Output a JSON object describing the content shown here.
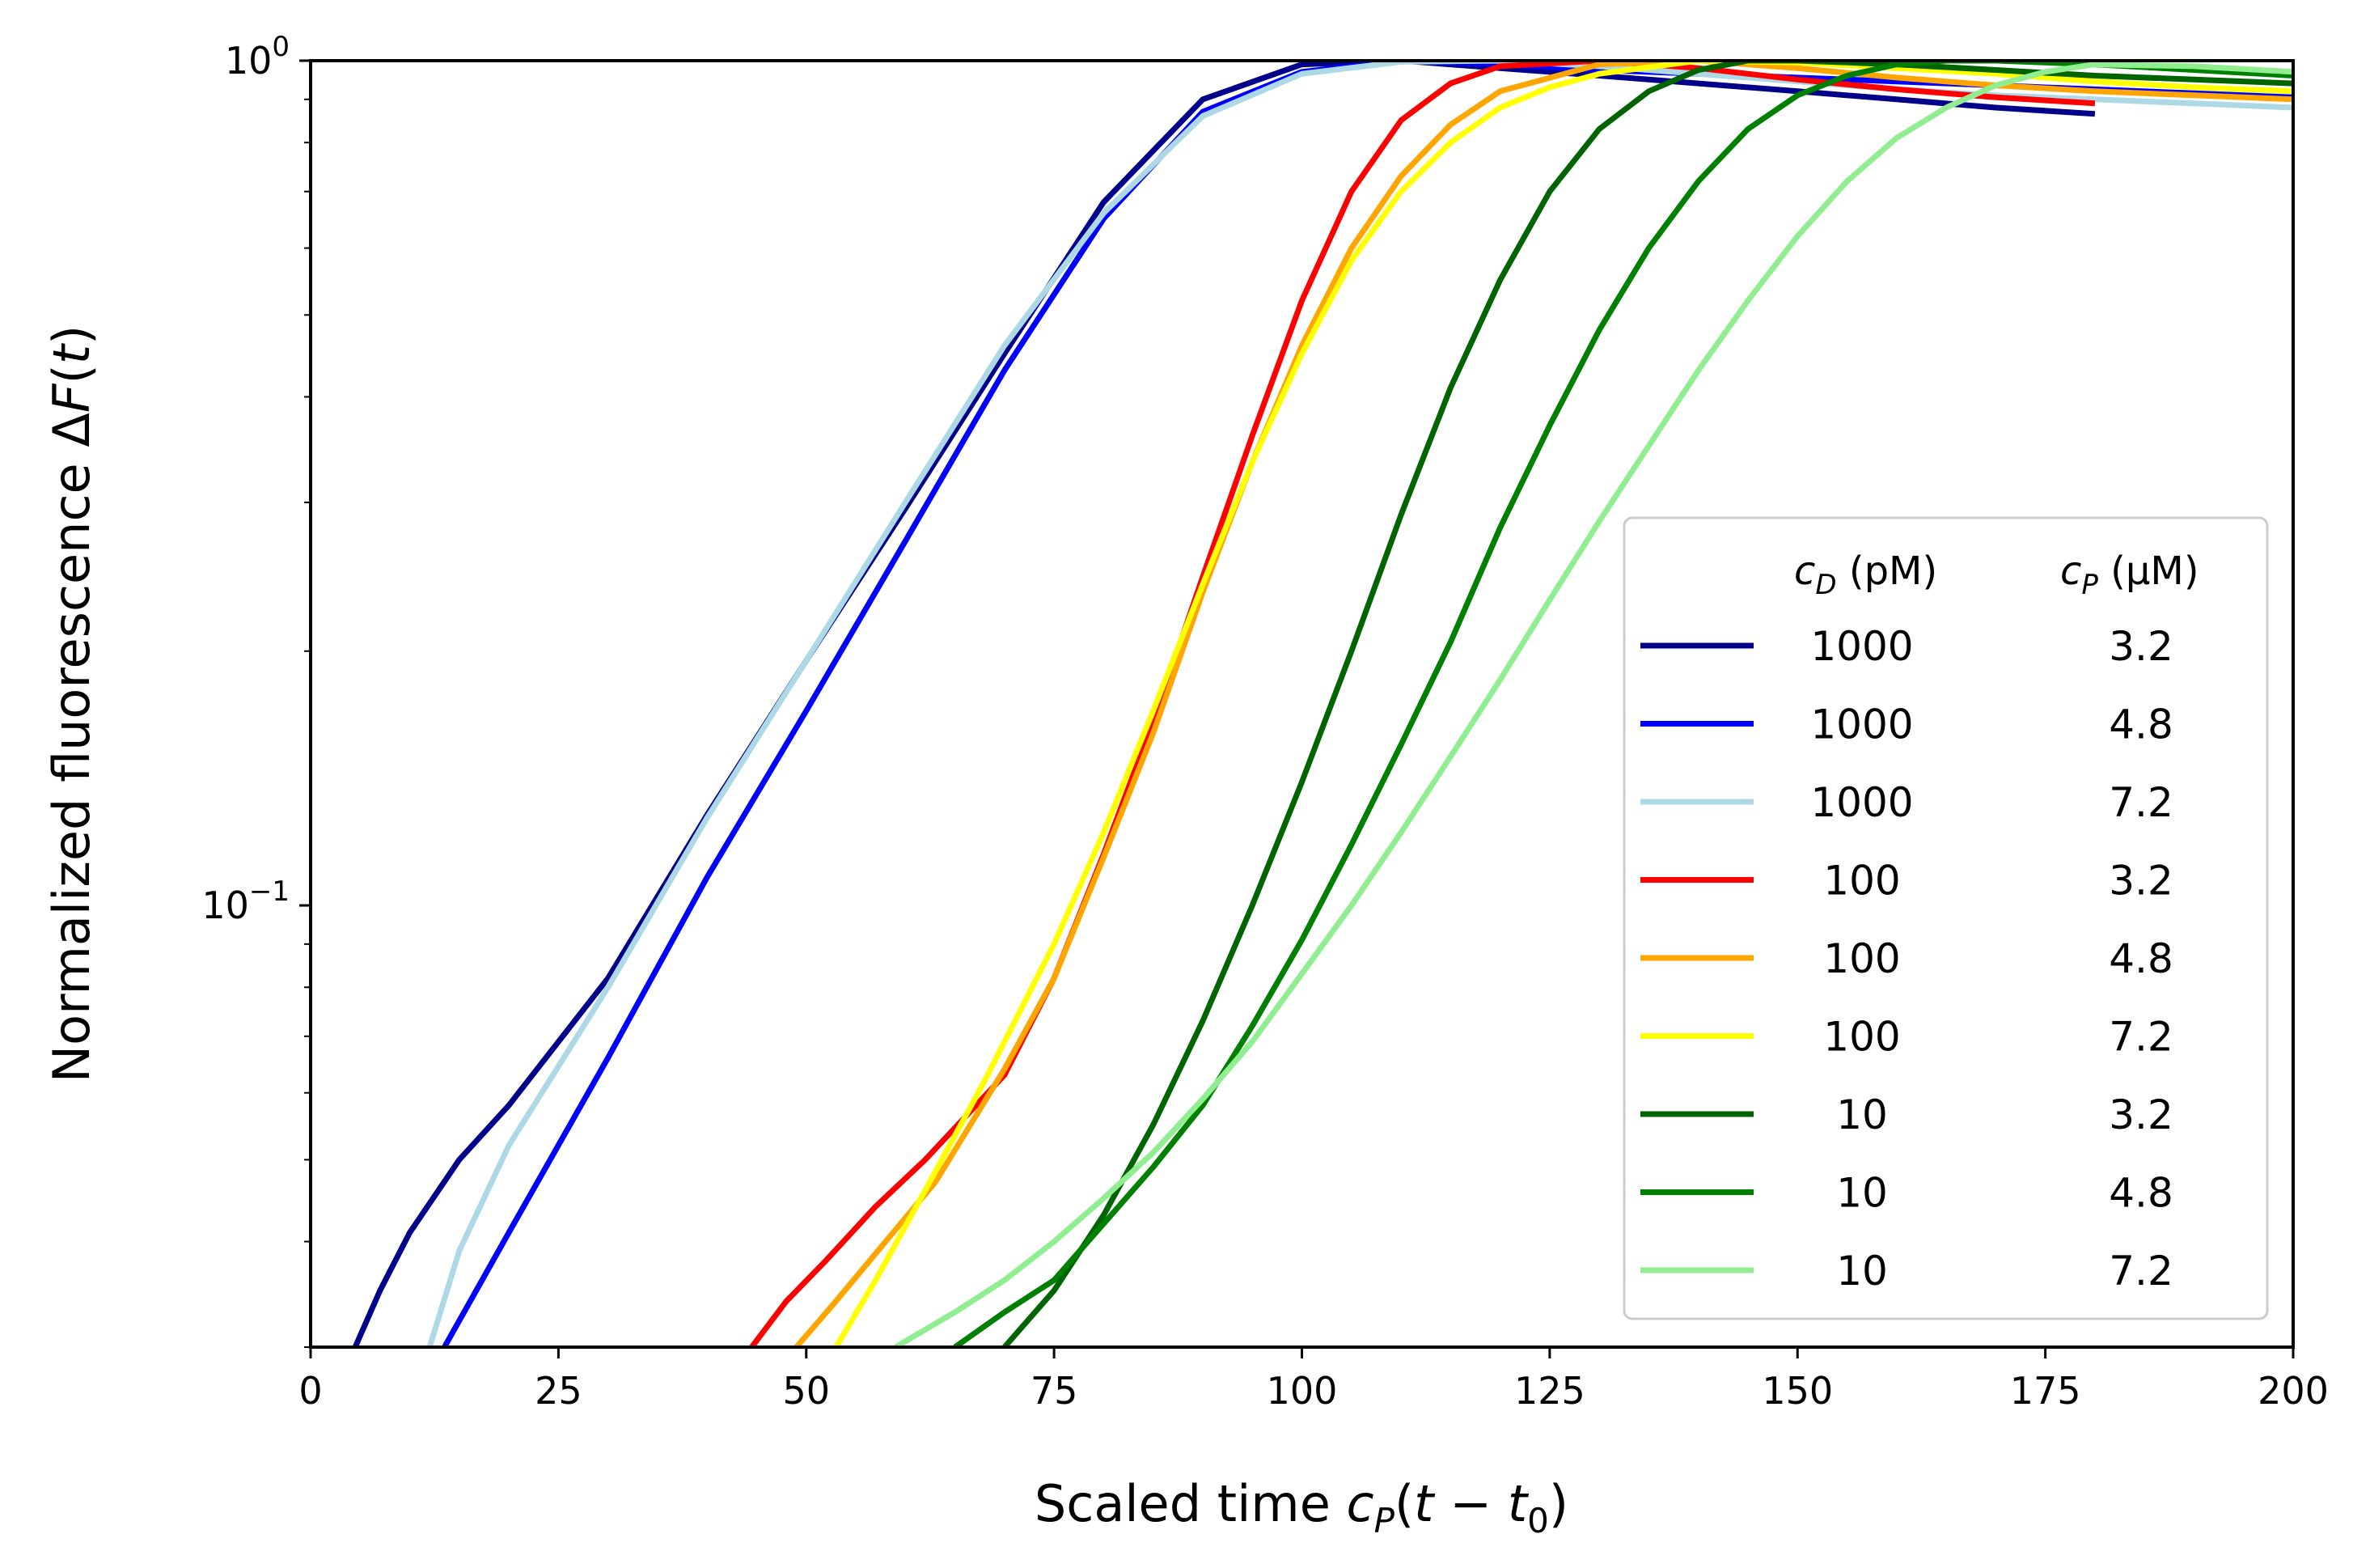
{
  "chart_data": {
    "type": "line",
    "title": "",
    "xlabel": {
      "prefix": "Scaled time ",
      "cvar": "c",
      "csub": "P",
      "paren_open": "(",
      "tvar": "t",
      "minus": " − ",
      "t0var": "t",
      "t0sub": "0",
      "paren_close": ")"
    },
    "ylabel": {
      "prefix": "Normalized fluorescence Δ",
      "fvar": "F",
      "paren_open": "(",
      "tvar": "t",
      "paren_close": ")"
    },
    "x_range": [
      0,
      200
    ],
    "y_range": [
      0.03,
      1.0
    ],
    "y_scale": "log",
    "x_ticks": [
      0,
      25,
      50,
      75,
      100,
      125,
      150,
      175,
      200
    ],
    "y_major_ticks": [
      {
        "value": 1.0,
        "base": "10",
        "exp": "0"
      },
      {
        "value": 0.1,
        "base": "10",
        "exp": "−1"
      }
    ],
    "y_minor_ticks": [
      0.03,
      0.04,
      0.05,
      0.06,
      0.07,
      0.08,
      0.09,
      0.2,
      0.3,
      0.4,
      0.5,
      0.6,
      0.7,
      0.8,
      0.9
    ],
    "legend": {
      "position": "lower-right",
      "header_cd": {
        "var": "c",
        "sub": "D",
        "unit": " (pM)"
      },
      "header_cp": {
        "var": "c",
        "sub": "P",
        "unit": " (μM)"
      }
    },
    "series": [
      {
        "cd": "1000",
        "cp": "3.2",
        "color": "#00008b",
        "x": [
          4.5,
          7,
          10,
          15,
          20,
          30,
          40,
          50,
          60,
          70,
          80,
          90,
          100,
          110,
          120,
          130,
          140,
          150,
          160,
          170,
          180
        ],
        "y": [
          0.03,
          0.035,
          0.041,
          0.05,
          0.058,
          0.082,
          0.128,
          0.195,
          0.295,
          0.45,
          0.68,
          0.9,
          0.99,
          1.0,
          0.98,
          0.96,
          0.94,
          0.92,
          0.9,
          0.88,
          0.865
        ]
      },
      {
        "cd": "1000",
        "cp": "4.8",
        "color": "#0000ff",
        "x": [
          13.5,
          20,
          30,
          40,
          50,
          60,
          70,
          80,
          90,
          100,
          110,
          120,
          130,
          140,
          150,
          160,
          170,
          180,
          190,
          200
        ],
        "y": [
          0.03,
          0.041,
          0.066,
          0.108,
          0.17,
          0.27,
          0.43,
          0.65,
          0.87,
          0.97,
          1.0,
          0.99,
          0.975,
          0.965,
          0.955,
          0.945,
          0.935,
          0.925,
          0.915,
          0.905
        ]
      },
      {
        "cd": "1000",
        "cp": "7.2",
        "color": "#add8e6",
        "x": [
          12,
          15,
          20,
          30,
          40,
          50,
          60,
          70,
          80,
          90,
          100,
          110,
          120,
          130,
          140,
          150,
          160,
          170,
          180,
          190,
          200
        ],
        "y": [
          0.03,
          0.039,
          0.052,
          0.08,
          0.127,
          0.195,
          0.3,
          0.46,
          0.66,
          0.86,
          0.965,
          0.997,
          1.0,
          0.985,
          0.965,
          0.945,
          0.925,
          0.91,
          0.9,
          0.89,
          0.88
        ]
      },
      {
        "cd": "100",
        "cp": "3.2",
        "color": "#ff0000",
        "x": [
          44.5,
          48,
          52,
          57,
          62,
          70,
          75,
          80,
          85,
          90,
          95,
          100,
          105,
          110,
          115,
          120,
          130,
          140,
          150,
          160,
          170,
          180
        ],
        "y": [
          0.03,
          0.034,
          0.038,
          0.044,
          0.05,
          0.063,
          0.082,
          0.115,
          0.165,
          0.245,
          0.36,
          0.52,
          0.7,
          0.85,
          0.94,
          0.985,
          1.0,
          0.98,
          0.95,
          0.925,
          0.905,
          0.89
        ]
      },
      {
        "cd": "100",
        "cp": "4.8",
        "color": "#ffa500",
        "x": [
          49,
          53,
          58,
          63,
          70,
          75,
          80,
          85,
          90,
          95,
          100,
          105,
          110,
          115,
          120,
          130,
          140,
          150,
          160,
          170,
          180,
          190,
          200
        ],
        "y": [
          0.03,
          0.034,
          0.04,
          0.047,
          0.064,
          0.082,
          0.114,
          0.16,
          0.235,
          0.335,
          0.46,
          0.6,
          0.73,
          0.84,
          0.92,
          0.99,
          1.0,
          0.98,
          0.955,
          0.935,
          0.92,
          0.91,
          0.9
        ]
      },
      {
        "cd": "100",
        "cp": "7.2",
        "color": "#ffff00",
        "x": [
          53,
          57,
          62,
          68,
          75,
          80,
          85,
          90,
          95,
          100,
          105,
          110,
          115,
          120,
          125,
          130,
          140,
          150,
          160,
          170,
          180,
          190,
          200
        ],
        "y": [
          0.03,
          0.036,
          0.046,
          0.062,
          0.09,
          0.122,
          0.17,
          0.24,
          0.335,
          0.45,
          0.58,
          0.7,
          0.8,
          0.88,
          0.93,
          0.965,
          1.0,
          0.995,
          0.98,
          0.965,
          0.945,
          0.93,
          0.92
        ]
      },
      {
        "cd": "10",
        "cp": "3.2",
        "color": "#006400",
        "x": [
          70,
          75,
          80,
          85,
          90,
          95,
          100,
          105,
          110,
          115,
          120,
          125,
          130,
          135,
          140,
          145,
          150,
          160,
          170,
          180,
          190,
          200
        ],
        "y": [
          0.03,
          0.035,
          0.043,
          0.055,
          0.073,
          0.1,
          0.14,
          0.2,
          0.29,
          0.41,
          0.55,
          0.7,
          0.83,
          0.92,
          0.975,
          1.0,
          1.0,
          0.99,
          0.975,
          0.96,
          0.95,
          0.94
        ]
      },
      {
        "cd": "10",
        "cp": "4.8",
        "color": "#008000",
        "x": [
          65,
          70,
          75,
          80,
          85,
          90,
          95,
          100,
          105,
          110,
          115,
          120,
          125,
          130,
          135,
          140,
          145,
          150,
          155,
          160,
          165,
          170,
          180,
          190,
          200
        ],
        "y": [
          0.03,
          0.033,
          0.036,
          0.042,
          0.049,
          0.058,
          0.072,
          0.091,
          0.118,
          0.155,
          0.205,
          0.28,
          0.37,
          0.48,
          0.6,
          0.72,
          0.83,
          0.91,
          0.96,
          0.99,
          1.0,
          1.0,
          0.99,
          0.975,
          0.96
        ]
      },
      {
        "cd": "10",
        "cp": "7.2",
        "color": "#90ee90",
        "x": [
          59,
          65,
          70,
          75,
          80,
          85,
          90,
          95,
          100,
          105,
          110,
          115,
          120,
          125,
          130,
          135,
          140,
          145,
          150,
          155,
          160,
          165,
          170,
          175,
          180,
          190,
          200
        ],
        "y": [
          0.03,
          0.033,
          0.036,
          0.04,
          0.045,
          0.051,
          0.059,
          0.069,
          0.083,
          0.1,
          0.122,
          0.15,
          0.185,
          0.23,
          0.285,
          0.35,
          0.43,
          0.52,
          0.62,
          0.72,
          0.81,
          0.88,
          0.935,
          0.97,
          0.99,
          0.985,
          0.97
        ]
      }
    ]
  }
}
